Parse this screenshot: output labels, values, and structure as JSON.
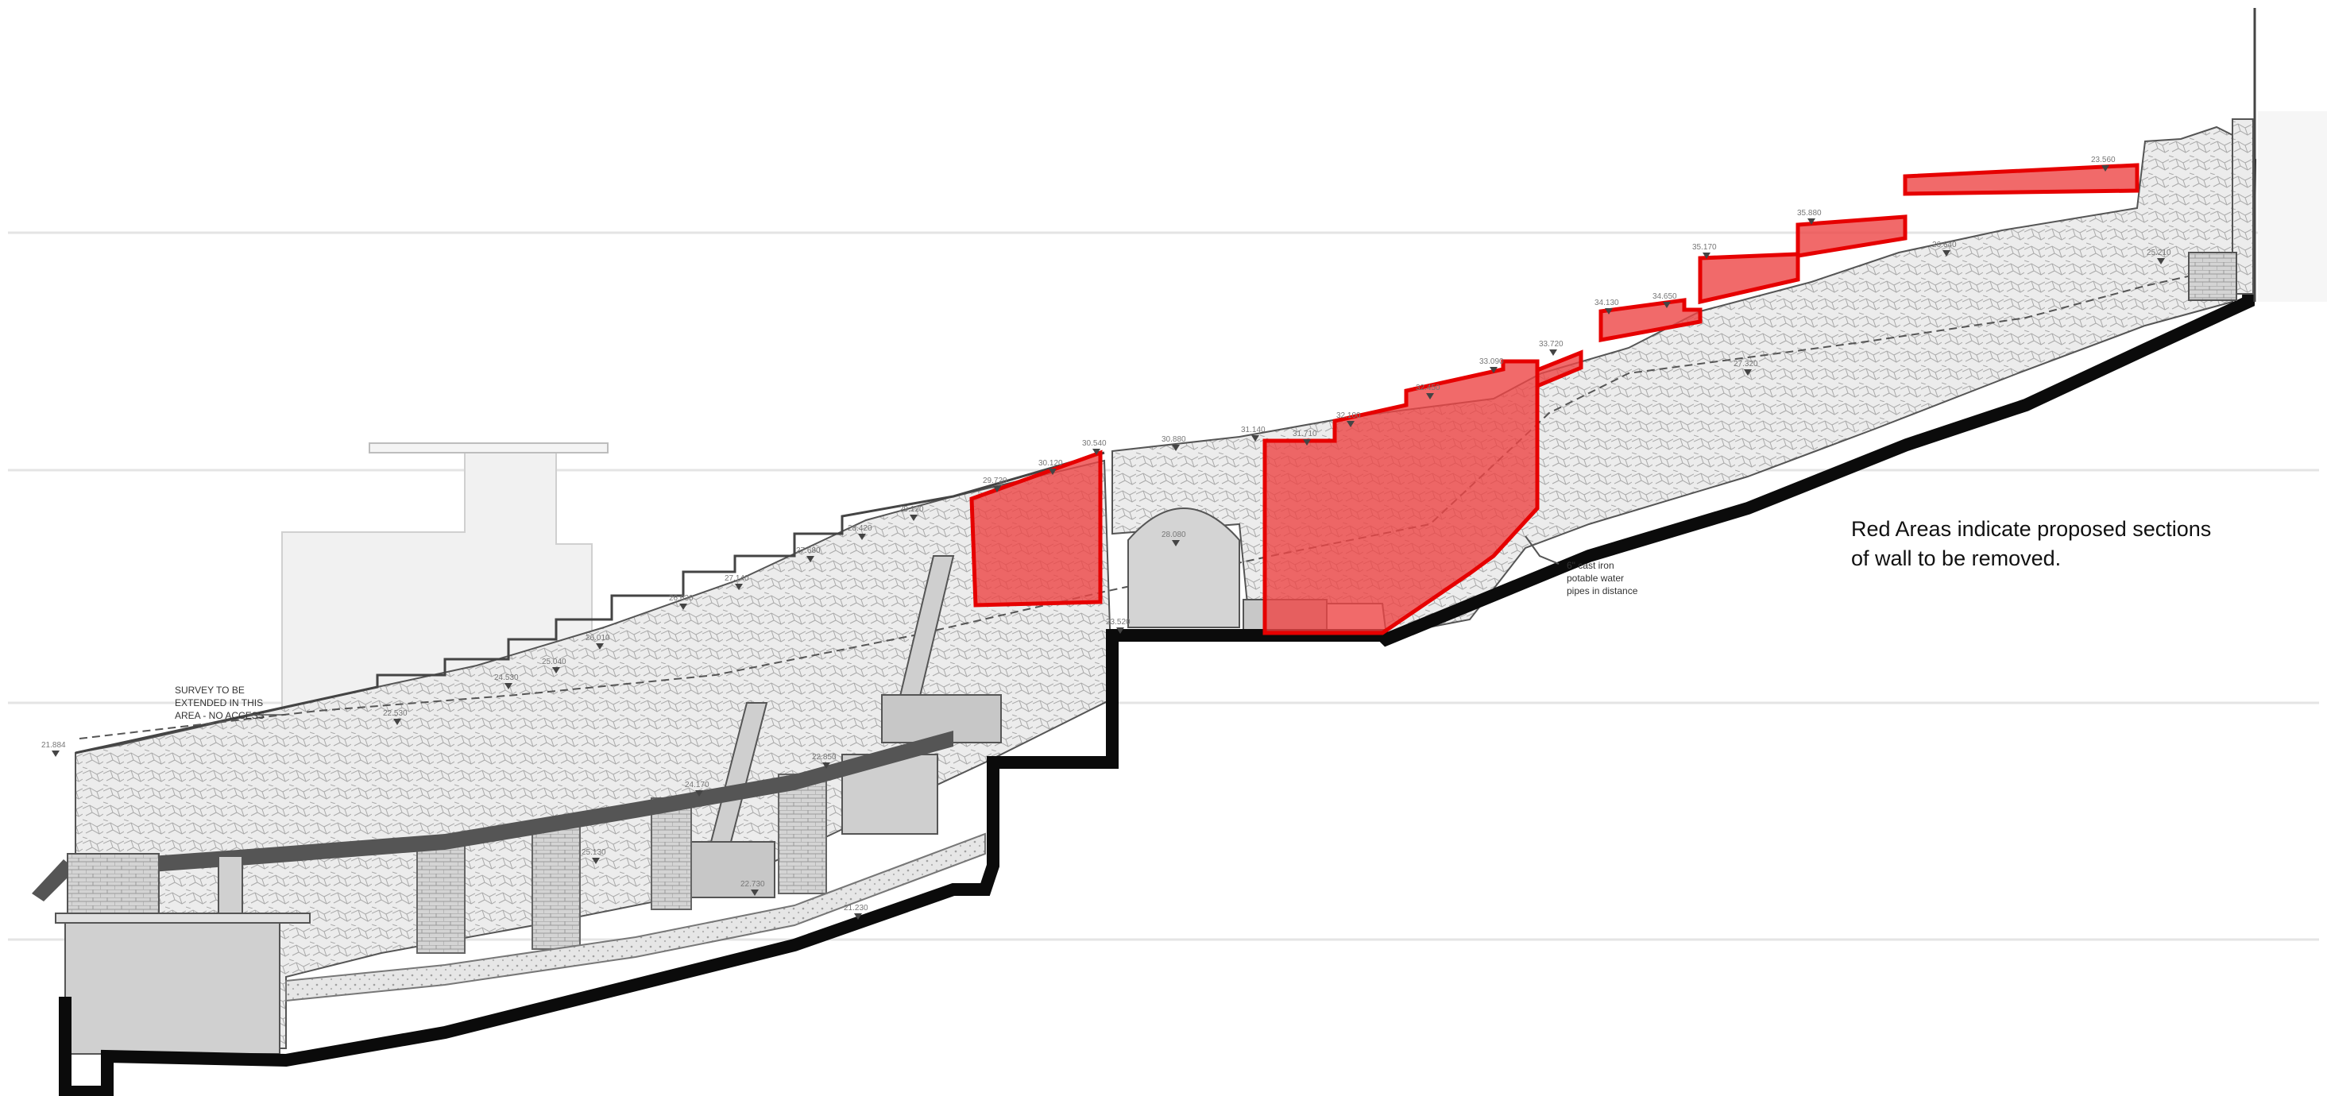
{
  "diagram": {
    "type": "site cross-section",
    "notes": {
      "survey": [
        "SURVEY TO BE",
        "EXTENDED IN THIS",
        "AREA - NO ACCESS"
      ],
      "pipe": [
        "6\" cast iron",
        "potable water",
        "pipes in distance"
      ]
    },
    "legend": {
      "line1": "Red Areas indicate proposed sections",
      "line2": "of wall to be removed."
    },
    "spot_levels": [
      "21.884",
      "22.530",
      "24.530",
      "25.040",
      "26.010",
      "26.630",
      "27.140",
      "27.680",
      "28.420",
      "29.120",
      "29.720",
      "30.120",
      "30.540",
      "30.880",
      "31.140",
      "31.710",
      "32.100",
      "32.450",
      "33.090",
      "33.720",
      "34.130",
      "34.650",
      "35.170",
      "35.880",
      "23.560",
      "25.210",
      "26.640",
      "27.320",
      "28.080",
      "23.520",
      "24.170",
      "22.850",
      "25.130",
      "22.730",
      "21.230"
    ],
    "colors": {
      "removal_fill": "#ee4545",
      "removal_outline": "#e60000",
      "wall_hatch": "#e9e9e9",
      "structure": "#d7d7d7",
      "foundation": "#0b0b0b"
    }
  }
}
